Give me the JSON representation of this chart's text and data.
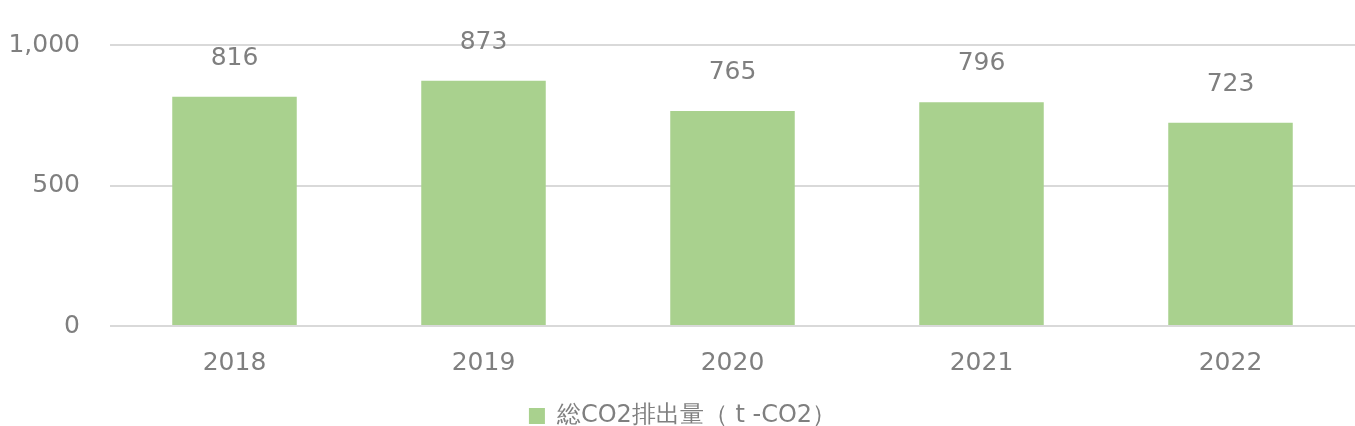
{
  "chart_data": {
    "type": "bar",
    "categories": [
      "2018",
      "2019",
      "2020",
      "2021",
      "2022"
    ],
    "series": [
      {
        "name": "総CO2排出量（ t -CO2）",
        "color": "#a9d18e",
        "values": [
          816,
          873,
          765,
          796,
          723
        ]
      }
    ],
    "ylim": [
      0,
      1000
    ],
    "yticks": [
      0,
      500,
      {
        "value": 1000,
        "label": "1,000"
      }
    ],
    "grid": "y",
    "legend": "bottom",
    "data_labels": true
  }
}
